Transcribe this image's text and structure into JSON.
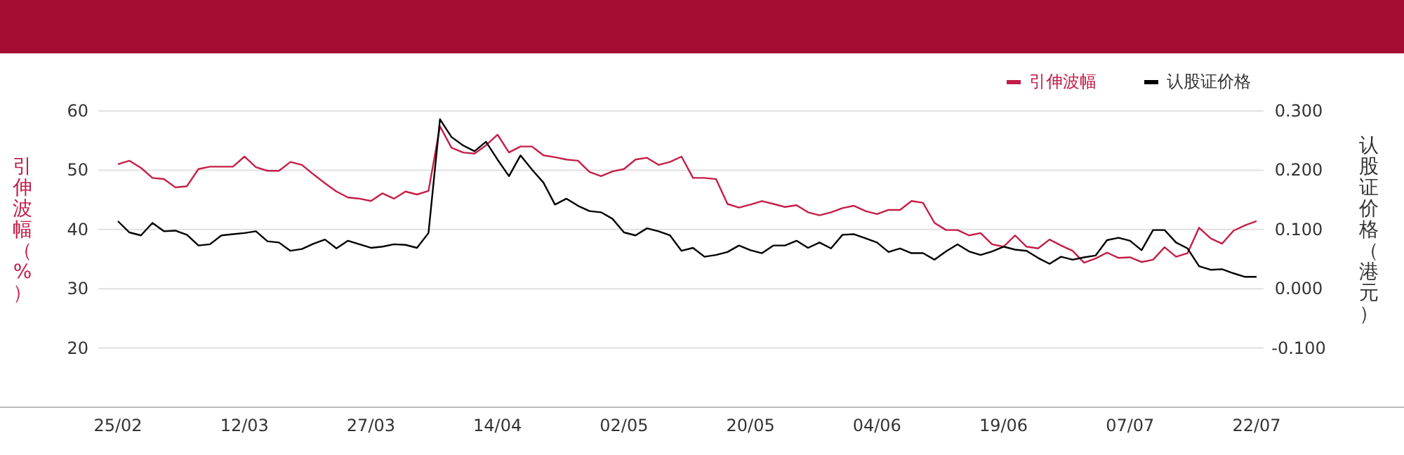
{
  "chart_data": {
    "type": "line",
    "ylabel": "引伸波幅（%）",
    "y2label": "认股证价格（港元）",
    "categories": [
      "25/02",
      null,
      null,
      null,
      null,
      null,
      null,
      null,
      null,
      null,
      null,
      "12/03",
      null,
      null,
      null,
      null,
      null,
      null,
      null,
      null,
      null,
      null,
      "27/03",
      null,
      null,
      null,
      null,
      null,
      null,
      null,
      null,
      null,
      null,
      "14/04",
      null,
      null,
      null,
      null,
      null,
      null,
      null,
      null,
      null,
      null,
      "02/05",
      null,
      null,
      null,
      null,
      null,
      null,
      null,
      null,
      null,
      null,
      "20/05",
      null,
      null,
      null,
      null,
      null,
      null,
      null,
      null,
      null,
      null,
      "04/06",
      null,
      null,
      null,
      null,
      null,
      null,
      null,
      null,
      null,
      null,
      "19/06",
      null,
      null,
      null,
      null,
      null,
      null,
      null,
      null,
      null,
      null,
      "07/07",
      null,
      null,
      null,
      null,
      null,
      null,
      null,
      null,
      null,
      null,
      "22/07"
    ],
    "series": [
      {
        "name": "引伸波幅",
        "color": "#c41e48",
        "values": [
          51.0,
          51.6,
          50.4,
          48.7,
          48.5,
          47.1,
          47.3,
          50.2,
          50.6,
          50.6,
          50.6,
          52.3,
          50.5,
          49.9,
          49.9,
          51.4,
          50.9,
          49.3,
          47.8,
          46.4,
          45.4,
          45.2,
          44.8,
          46.1,
          45.2,
          46.4,
          45.9,
          46.5,
          57.4,
          53.8,
          53.0,
          52.8,
          54.2,
          56.0,
          53.0,
          54.0,
          54.0,
          52.5,
          52.2,
          51.8,
          51.6,
          49.7,
          49.0,
          49.8,
          50.2,
          51.8,
          52.1,
          50.9,
          51.4,
          52.3,
          48.7,
          48.7,
          48.5,
          44.3,
          43.7,
          44.2,
          44.8,
          44.3,
          43.8,
          44.1,
          42.9,
          42.4,
          42.9,
          43.6,
          44.0,
          43.1,
          42.6,
          43.3,
          43.3,
          44.8,
          44.5,
          41.1,
          39.9,
          39.9,
          39.0,
          39.4,
          37.5,
          37.1,
          39.0,
          37.1,
          36.8,
          38.3,
          37.3,
          36.4,
          34.4,
          35.1,
          36.1,
          35.2,
          35.3,
          34.5,
          34.9,
          37.0,
          35.4,
          36.0,
          40.3,
          38.5,
          37.6,
          39.8,
          40.7,
          41.4
        ]
      },
      {
        "name": "认股证价格",
        "color": "#000000",
        "axis": "y2",
        "values": [
          0.114,
          0.095,
          0.09,
          0.111,
          0.097,
          0.098,
          0.091,
          0.073,
          0.075,
          0.09,
          0.092,
          0.094,
          0.097,
          0.08,
          0.078,
          0.064,
          0.067,
          0.076,
          0.083,
          0.068,
          0.081,
          0.075,
          0.069,
          0.071,
          0.075,
          0.074,
          0.069,
          0.094,
          0.286,
          0.256,
          0.242,
          0.232,
          0.248,
          0.218,
          0.19,
          0.225,
          0.201,
          0.179,
          0.142,
          0.152,
          0.14,
          0.131,
          0.129,
          0.118,
          0.095,
          0.09,
          0.102,
          0.097,
          0.09,
          0.064,
          0.069,
          0.054,
          0.057,
          0.062,
          0.073,
          0.065,
          0.06,
          0.073,
          0.073,
          0.081,
          0.069,
          0.078,
          0.068,
          0.091,
          0.092,
          0.085,
          0.078,
          0.062,
          0.068,
          0.06,
          0.06,
          0.049,
          0.063,
          0.075,
          0.063,
          0.057,
          0.063,
          0.071,
          0.066,
          0.064,
          0.052,
          0.042,
          0.054,
          0.049,
          0.053,
          0.056,
          0.082,
          0.086,
          0.081,
          0.065,
          0.099,
          0.099,
          0.078,
          0.068,
          0.038,
          0.032,
          0.033,
          0.026,
          0.02,
          0.02
        ]
      }
    ],
    "ylim": [
      10,
      60
    ],
    "yticks": [
      20,
      30,
      40,
      50,
      60
    ],
    "y2lim": [
      -0.2,
      0.3
    ],
    "y2ticks": [
      {
        "value": -0.1,
        "label": "-0.100"
      },
      {
        "value": 0,
        "label": "0.000"
      },
      {
        "value": 0.1,
        "label": "0.100"
      },
      {
        "value": 0.2,
        "label": "0.200"
      },
      {
        "value": 0.3,
        "label": "0.300"
      }
    ],
    "grid": "y",
    "legend": "top right",
    "marker": "none",
    "line_style": "solid"
  }
}
